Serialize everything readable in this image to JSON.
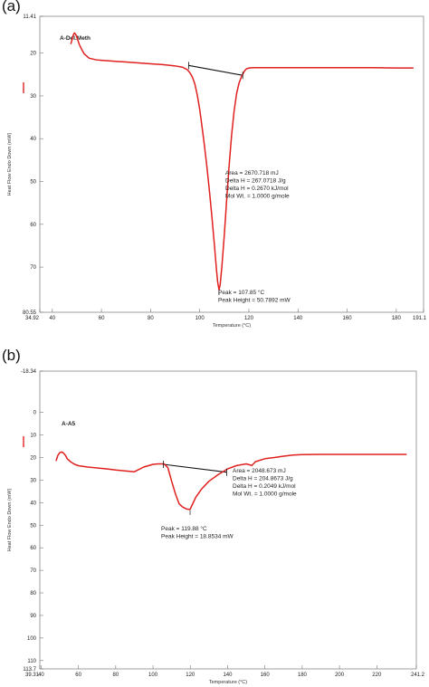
{
  "chart_data": [
    {
      "panel": "(a)",
      "type": "line",
      "sample_label": "A-Del.Meth",
      "xlabel": "Temperature (°C)",
      "ylabel": "Heat Flow Endo Down (mW)",
      "xlim": [
        34.92,
        191.1
      ],
      "ylim_top": 11.41,
      "ylim_bottom": 80.55,
      "x_tick_labels": [
        "34.92",
        "40",
        "60",
        "80",
        "100",
        "120",
        "140",
        "160",
        "180",
        "191.1"
      ],
      "x_ticks": [
        34.92,
        40,
        60,
        80,
        100,
        120,
        140,
        160,
        180,
        191.1
      ],
      "y_tick_labels": [
        "11.41",
        "20",
        "30",
        "40",
        "50",
        "60",
        "70",
        "80.55"
      ],
      "y_ticks": [
        11.41,
        20,
        30,
        40,
        50,
        60,
        70,
        80.55
      ],
      "series": [
        {
          "color": "#e0201e",
          "x": [
            47.5,
            48,
            48.5,
            49,
            49.5,
            50,
            50.5,
            51,
            52,
            53,
            55,
            58,
            60,
            65,
            70,
            75,
            80,
            85,
            90,
            93,
            95,
            96,
            97,
            98,
            99,
            100,
            101,
            102,
            103,
            104,
            105,
            106,
            106.8,
            107.3,
            107.85,
            108.3,
            109,
            110,
            111,
            112,
            113,
            114,
            115,
            116,
            117,
            118,
            118.5,
            119,
            120,
            122,
            125,
            130,
            140,
            150,
            160,
            170,
            180,
            185,
            187
          ],
          "y": [
            17.9,
            17.0,
            15.8,
            15.3,
            15.6,
            16.3,
            17.2,
            18.0,
            19.2,
            20.2,
            21.2,
            21.6,
            21.7,
            21.9,
            22.1,
            22.3,
            22.5,
            22.7,
            23.0,
            23.3,
            23.9,
            24.6,
            25.6,
            27.2,
            29.8,
            33.2,
            37.5,
            42.0,
            47.0,
            52.5,
            58.5,
            65.0,
            70.5,
            73.5,
            75.3,
            74.2,
            70.0,
            62.5,
            54.0,
            46.0,
            39.0,
            33.5,
            29.5,
            27.0,
            25.5,
            24.4,
            24.0,
            23.7,
            23.5,
            23.4,
            23.4,
            23.4,
            23.4,
            23.4,
            23.4,
            23.4,
            23.5,
            23.5,
            23.5
          ]
        }
      ],
      "baseline": {
        "x": [
          95.5,
          117.5
        ],
        "y": [
          22.9,
          25.2
        ]
      },
      "tick_marks_x": [
        95.5,
        117.5
      ],
      "annotations": {
        "area_lines": [
          "Area = 2670.718 mJ",
          "Delta H = 267.0718 J/g",
          "Delta H = 0.2670 kJ/mol",
          "Mol Wt. = 1.0000 g/mole"
        ],
        "peak_lines": [
          "Peak = 107.85 °C",
          "Peak Height = 50.7892 mW"
        ]
      }
    },
    {
      "panel": "(b)",
      "type": "line",
      "sample_label": "A-A5",
      "xlabel": "Temperature (°C)",
      "ylabel": "Heat Flow Endo Down (mW)",
      "xlim": [
        39.31,
        241.2
      ],
      "ylim_top": -18.34,
      "ylim_bottom": 113.7,
      "x_tick_labels": [
        "39.31",
        "40",
        "60",
        "80",
        "100",
        "120",
        "140",
        "160",
        "180",
        "200",
        "220",
        "241.2"
      ],
      "x_ticks": [
        39.31,
        40,
        60,
        80,
        100,
        120,
        140,
        160,
        180,
        200,
        220,
        241.2
      ],
      "y_tick_labels": [
        "-18.34",
        "0",
        "10",
        "20",
        "30",
        "40",
        "50",
        "60",
        "70",
        "80",
        "90",
        "100",
        "110",
        "113.7"
      ],
      "y_ticks": [
        -18.34,
        0,
        10,
        20,
        30,
        40,
        50,
        60,
        70,
        80,
        90,
        100,
        110,
        113.7
      ],
      "series": [
        {
          "color": "#e0201e",
          "x": [
            48,
            49,
            50,
            51,
            52,
            53,
            54,
            56,
            58,
            60,
            65,
            70,
            75,
            80,
            85,
            90,
            95,
            100,
            103,
            106,
            108,
            110,
            112,
            114,
            116,
            118,
            119.88,
            121,
            123,
            126,
            130,
            135,
            140,
            145,
            150,
            153,
            155,
            160,
            165,
            170,
            175,
            180,
            190,
            200,
            210,
            220,
            230,
            236
          ],
          "y": [
            21.5,
            19.0,
            17.8,
            17.5,
            18.0,
            19.0,
            20.5,
            22.0,
            23.0,
            23.6,
            24.2,
            24.6,
            25.0,
            25.5,
            25.9,
            26.3,
            24.2,
            23.0,
            22.8,
            22.8,
            24.5,
            30.5,
            36.0,
            40.5,
            42.0,
            42.8,
            43.0,
            41.0,
            37.5,
            34.0,
            30.5,
            27.5,
            25.0,
            23.5,
            22.8,
            23.5,
            21.8,
            20.5,
            20.0,
            19.4,
            18.9,
            18.7,
            18.6,
            18.6,
            18.6,
            18.6,
            18.6,
            18.6
          ]
        }
      ],
      "baseline": {
        "x": [
          105.5,
          139.5
        ],
        "y": [
          23.0,
          26.5
        ]
      },
      "tick_marks_x": [
        105.5,
        139.5
      ],
      "annotations": {
        "area_lines": [
          "Area = 2048.673 mJ",
          "Delta H = 204.8673 J/g",
          "Delta H = 0.2049 kJ/mol",
          "Mol Wt. = 1.0000 g/mole"
        ],
        "peak_lines": [
          "Peak = 119.88 °C",
          "Peak Height = 18.8534 mW"
        ]
      }
    }
  ],
  "panel_labels": [
    "(a)",
    "(b)"
  ]
}
